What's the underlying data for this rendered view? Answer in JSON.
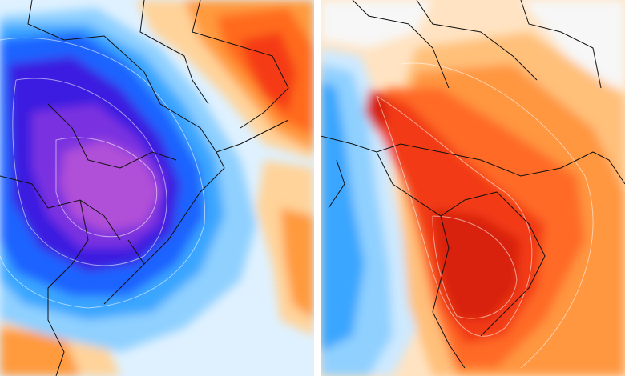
{
  "maps": [
    {
      "id": "left",
      "pattern": "cold-anomaly",
      "colors": {
        "deep_purple": "#b050d8",
        "purple": "#7a30e0",
        "indigo": "#3a1ee0",
        "blue": "#1e64ff",
        "sky": "#3aa6ff",
        "light_blue": "#8fd0ff",
        "pale": "#dff1ff",
        "white": "#f8fbff",
        "light_orange": "#ffd39a",
        "orange": "#ff9a3c",
        "deep_orange": "#ff6a1e",
        "red": "#f53a14"
      }
    },
    {
      "id": "right",
      "pattern": "warm-anomaly",
      "colors": {
        "white": "#f7f7f7",
        "pale_orange": "#ffe3c2",
        "light_orange": "#ffc07a",
        "orange": "#ff9640",
        "deep_orange": "#ff6a28",
        "red": "#f23a14",
        "dark_red": "#d8200a",
        "light_blue": "#8fd0ff",
        "sky": "#3aa6ff",
        "pale_blue": "#cde9ff"
      }
    }
  ]
}
